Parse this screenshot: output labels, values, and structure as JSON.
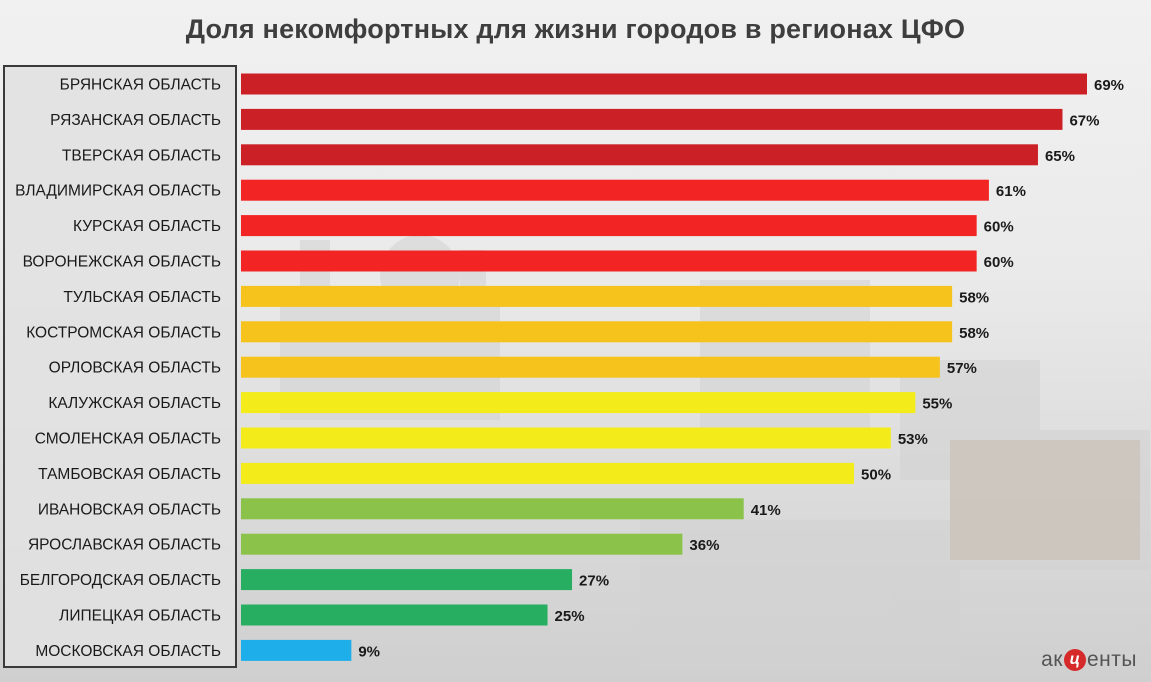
{
  "chart_data": {
    "type": "bar",
    "orientation": "horizontal",
    "title": "Доля некомфортных для жизни городов в регионах ЦФО",
    "categories": [
      "БРЯНСКАЯ ОБЛАСТЬ",
      "РЯЗАНСКАЯ ОБЛАСТЬ",
      "ТВЕРСКАЯ ОБЛАСТЬ",
      "ВЛАДИМИРСКАЯ ОБЛАСТЬ",
      "КУРСКАЯ ОБЛАСТЬ",
      "ВОРОНЕЖСКАЯ ОБЛАСТЬ",
      "ТУЛЬСКАЯ ОБЛАСТЬ",
      "КОСТРОМСКАЯ ОБЛАСТЬ",
      "ОРЛОВСКАЯ ОБЛАСТЬ",
      "КАЛУЖСКАЯ ОБЛАСТЬ",
      "СМОЛЕНСКАЯ ОБЛАСТЬ",
      "ТАМБОВСКАЯ ОБЛАСТЬ",
      "ИВАНОВСКАЯ ОБЛАСТЬ",
      "ЯРОСЛАВСКАЯ ОБЛАСТЬ",
      "БЕЛГОРОДСКАЯ ОБЛАСТЬ",
      "ЛИПЕЦКАЯ ОБЛАСТЬ",
      "МОСКОВСКАЯ ОБЛАСТЬ"
    ],
    "values": [
      69,
      67,
      65,
      61,
      60,
      60,
      58,
      58,
      57,
      55,
      53,
      50,
      41,
      36,
      27,
      25,
      9
    ],
    "value_labels": [
      "69%",
      "67%",
      "65%",
      "61%",
      "60%",
      "60%",
      "58%",
      "58%",
      "57%",
      "55%",
      "53%",
      "50%",
      "41%",
      "36%",
      "27%",
      "25%",
      "9%"
    ],
    "colors": [
      "#cc2027",
      "#cc2027",
      "#cc2027",
      "#f22424",
      "#f22424",
      "#f22424",
      "#f6c21c",
      "#f6c21c",
      "#f6c21c",
      "#f3ec1a",
      "#f3ec1a",
      "#f3ec1a",
      "#8bc34a",
      "#8bc34a",
      "#27ae60",
      "#27ae60",
      "#1eaeea"
    ],
    "xlim": [
      0,
      70
    ],
    "xlabel": "",
    "ylabel": "",
    "grid": false,
    "legend": "none"
  },
  "logo": {
    "left": "ак",
    "mark": "ц",
    "right": "енты",
    "mark_color": "#d62a2a"
  }
}
